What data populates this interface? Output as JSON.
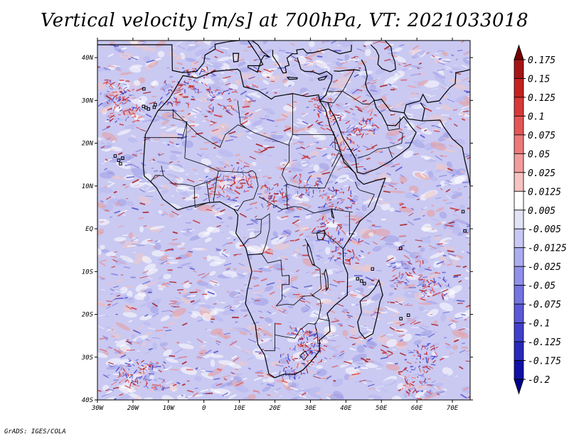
{
  "title": "Vertical velocity [m/s] at 700hPa, VT: 2021033018",
  "footer": "GrADS: IGES/COLA",
  "map": {
    "lon_labels": [
      "30W",
      "20W",
      "10W",
      "0",
      "10E",
      "20E",
      "30E",
      "40E",
      "50E",
      "60E",
      "70E"
    ],
    "lat_labels": [
      "40N",
      "30N",
      "20N",
      "10N",
      "EQ",
      "10S",
      "20S",
      "30S",
      "40S"
    ],
    "lon_range": [
      -30,
      75
    ],
    "lat_range": [
      -40,
      44
    ]
  },
  "colorbar": {
    "labels": [
      "0.175",
      "0.15",
      "0.125",
      "0.1",
      "0.075",
      "0.05",
      "0.025",
      "0.0125",
      "0.005",
      "-0.005",
      "-0.0125",
      "-0.025",
      "-0.05",
      "-0.075",
      "-0.1",
      "-0.125",
      "-0.175",
      "-0.2"
    ],
    "colors": [
      "#7a0000",
      "#a51414",
      "#c42020",
      "#d83838",
      "#e45656",
      "#ec7a7a",
      "#f29c9c",
      "#f7c2c2",
      "#ffffff",
      "#e2e2f7",
      "#c8c8f5",
      "#acacf1",
      "#9090eb",
      "#7474e3",
      "#5a5ad8",
      "#4040cc",
      "#2828bb",
      "#1010a6",
      "#000090"
    ]
  }
}
